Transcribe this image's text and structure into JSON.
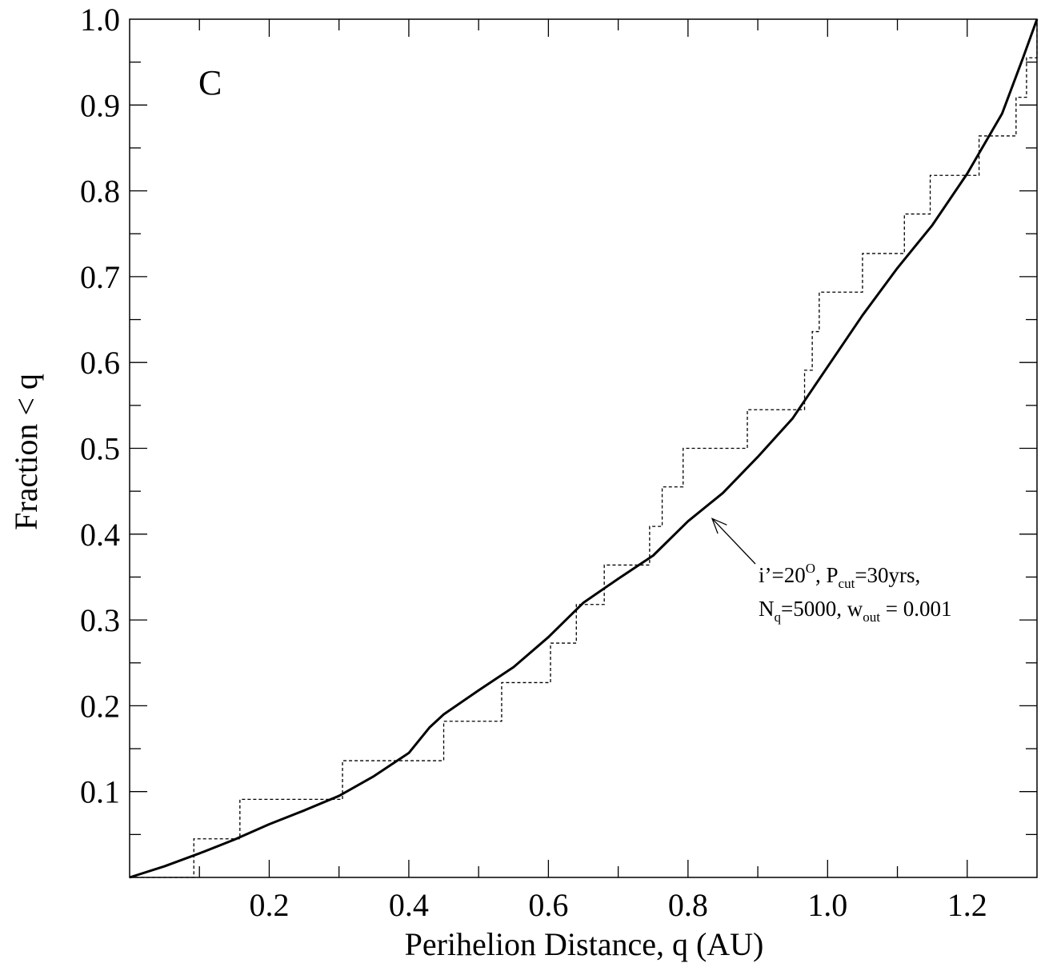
{
  "chart_data": {
    "type": "line",
    "title": "",
    "xlabel": "Perihelion Distance, q (AU)",
    "ylabel": "Fraction < q",
    "xlim": [
      0.0,
      1.3
    ],
    "ylim": [
      0.0,
      1.0
    ],
    "x_ticks": [
      "0.2",
      "0.4",
      "0.6",
      "0.8",
      "1.0",
      "1.2"
    ],
    "x_tick_values": [
      0.2,
      0.4,
      0.6,
      0.8,
      1.0,
      1.2
    ],
    "y_ticks": [
      "0.1",
      "0.2",
      "0.3",
      "0.4",
      "0.5",
      "0.6",
      "0.7",
      "0.8",
      "0.9",
      "1.0"
    ],
    "y_tick_values": [
      0.1,
      0.2,
      0.3,
      0.4,
      0.5,
      0.6,
      0.7,
      0.8,
      0.9,
      1.0
    ],
    "grid": false,
    "panel_label": "C",
    "annotation": {
      "line1_prefix": "i’=20",
      "line1_sup": "O",
      "line1_mid": ", P",
      "line1_sub": "cut",
      "line1_suffix": "=30yrs,",
      "line2_prefix": "N",
      "line2_sub1": "q",
      "line2_mid": "=5000, w",
      "line2_sub2": "out",
      "line2_suffix": " = 0.001",
      "arrow_to": [
        0.83,
        0.42
      ]
    },
    "series": [
      {
        "style": "solid",
        "x": [
          0.0,
          0.05,
          0.1,
          0.15,
          0.2,
          0.25,
          0.3,
          0.35,
          0.4,
          0.43,
          0.45,
          0.5,
          0.55,
          0.6,
          0.65,
          0.7,
          0.75,
          0.8,
          0.85,
          0.9,
          0.95,
          1.0,
          1.05,
          1.1,
          1.15,
          1.2,
          1.25,
          1.28,
          1.3
        ],
        "y": [
          0.0,
          0.013,
          0.028,
          0.044,
          0.062,
          0.078,
          0.095,
          0.118,
          0.145,
          0.175,
          0.19,
          0.218,
          0.245,
          0.28,
          0.32,
          0.348,
          0.375,
          0.415,
          0.448,
          0.49,
          0.535,
          0.595,
          0.655,
          0.71,
          0.76,
          0.82,
          0.89,
          0.955,
          1.0
        ]
      },
      {
        "style": "dashed-step",
        "x": [
          0.0,
          0.092,
          0.158,
          0.305,
          0.45,
          0.533,
          0.603,
          0.64,
          0.68,
          0.7,
          0.745,
          0.763,
          0.793,
          0.885,
          0.967,
          0.978,
          0.988,
          1.05,
          1.11,
          1.147,
          1.217,
          1.27,
          1.285,
          1.3
        ],
        "y": [
          0.0,
          0.045,
          0.091,
          0.136,
          0.182,
          0.227,
          0.273,
          0.318,
          0.364,
          0.364,
          0.409,
          0.455,
          0.5,
          0.545,
          0.591,
          0.636,
          0.682,
          0.727,
          0.773,
          0.818,
          0.864,
          0.909,
          0.955,
          1.0
        ]
      }
    ]
  }
}
